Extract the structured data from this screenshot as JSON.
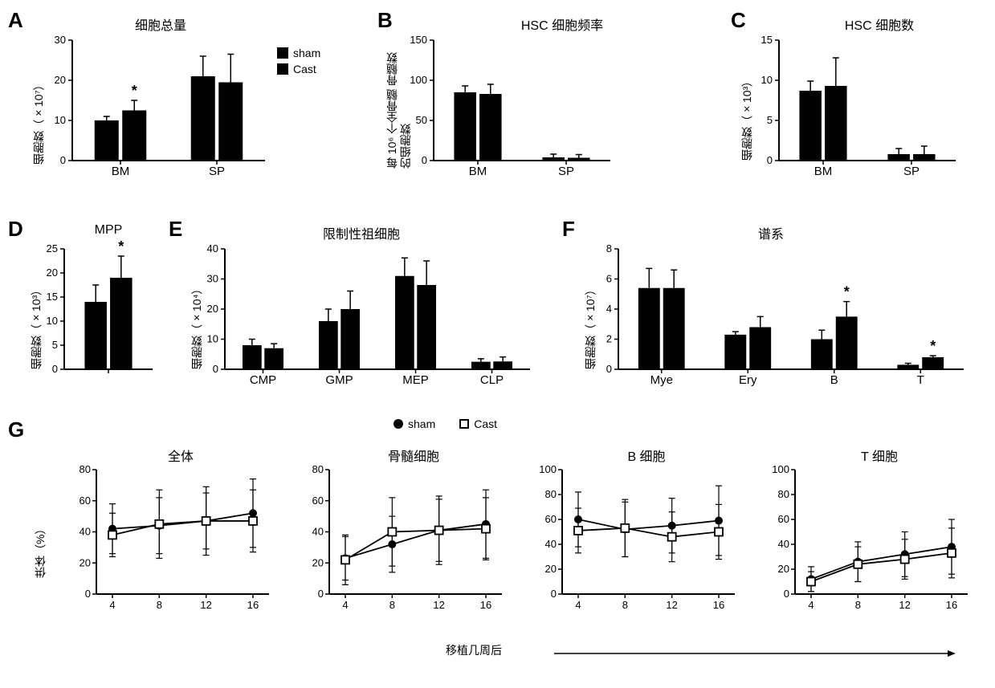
{
  "panels": {
    "A": {
      "label": "A",
      "title": "细胞总量",
      "ylabel": "细胞数（×10⁷）",
      "categories": [
        "BM",
        "SP"
      ],
      "sham": [
        10,
        21
      ],
      "cast": [
        12.5,
        19.5
      ],
      "sham_err": [
        1,
        5
      ],
      "cast_err": [
        2.5,
        7
      ],
      "ylim": [
        0,
        30
      ],
      "yticks": [
        0,
        10,
        20,
        30
      ],
      "sig": {
        "BM": "*"
      },
      "bar_color": "#000000",
      "bg": "#ffffff"
    },
    "B": {
      "label": "B",
      "title": "HSC 细胞频率",
      "ylabel": "每 10⁶ 个全骨髓 骨髓数\n的细胞数",
      "categories": [
        "BM",
        "SP"
      ],
      "sham": [
        85,
        4
      ],
      "cast": [
        83,
        3.5
      ],
      "sham_err": [
        8,
        4
      ],
      "cast_err": [
        12,
        4
      ],
      "ylim": [
        0,
        150
      ],
      "yticks": [
        0,
        50,
        100,
        150
      ],
      "bar_color": "#000000",
      "bg": "#ffffff"
    },
    "C": {
      "label": "C",
      "title": "HSC 细胞数",
      "ylabel": "细胞数（×10³）",
      "categories": [
        "BM",
        "SP"
      ],
      "sham": [
        8.7,
        0.8
      ],
      "cast": [
        9.3,
        0.8
      ],
      "sham_err": [
        1.2,
        0.7
      ],
      "cast_err": [
        3.5,
        1
      ],
      "ylim": [
        0,
        15
      ],
      "yticks": [
        0,
        5,
        10,
        15
      ],
      "bar_color": "#000000",
      "bg": "#ffffff"
    },
    "D": {
      "label": "D",
      "title": "MPP",
      "ylabel": "细胞数（×10³）",
      "sham": [
        14
      ],
      "cast": [
        19
      ],
      "sham_err": [
        3.5
      ],
      "cast_err": [
        4.5
      ],
      "ylim": [
        0,
        25
      ],
      "yticks": [
        0,
        5,
        10,
        15,
        20,
        25
      ],
      "sig": "*",
      "bar_color": "#000000",
      "bg": "#ffffff"
    },
    "E": {
      "label": "E",
      "title": "限制性祖细胞",
      "ylabel": "细胞数（×10⁴）",
      "categories": [
        "CMP",
        "GMP",
        "MEP",
        "CLP"
      ],
      "sham": [
        8,
        16,
        31,
        2.5
      ],
      "cast": [
        7,
        20,
        28,
        2.6
      ],
      "sham_err": [
        2,
        4,
        6,
        1
      ],
      "cast_err": [
        1.5,
        6,
        8,
        1.5
      ],
      "ylim": [
        0,
        40
      ],
      "yticks": [
        0,
        10,
        20,
        30,
        40
      ],
      "bar_color": "#000000",
      "bg": "#ffffff"
    },
    "F": {
      "label": "F",
      "title": "谱系",
      "ylabel": "细胞数（×10⁷）",
      "categories": [
        "Mye",
        "Ery",
        "B",
        "T"
      ],
      "sham": [
        5.4,
        2.3,
        2.0,
        0.3
      ],
      "cast": [
        5.4,
        2.8,
        3.5,
        0.8
      ],
      "sham_err": [
        1.3,
        0.2,
        0.6,
        0.1
      ],
      "cast_err": [
        1.2,
        0.7,
        1,
        0.1
      ],
      "ylim": [
        0,
        8
      ],
      "yticks": [
        0,
        2,
        4,
        6,
        8
      ],
      "sig": {
        "B": "*",
        "T": "*"
      },
      "bar_color": "#000000",
      "bg": "#ffffff"
    },
    "G": {
      "label": "G",
      "ylabel": "供体（%）",
      "xlabel": "移植几周后",
      "subplots": [
        {
          "title": "全体",
          "x": [
            4,
            8,
            12,
            16
          ],
          "sham": [
            42,
            44,
            47,
            52
          ],
          "cast": [
            38,
            45,
            47,
            47
          ],
          "sham_err": [
            16,
            18,
            18,
            22
          ],
          "cast_err": [
            14,
            22,
            22,
            20
          ],
          "ylim": [
            0,
            80
          ],
          "yticks": [
            0,
            20,
            40,
            60,
            80
          ]
        },
        {
          "title": "骨髓细胞",
          "x": [
            4,
            8,
            12,
            16
          ],
          "sham": [
            23,
            32,
            41,
            45
          ],
          "cast": [
            22,
            40,
            41,
            42
          ],
          "sham_err": [
            14,
            18,
            20,
            22
          ],
          "cast_err": [
            16,
            22,
            22,
            20
          ],
          "ylim": [
            0,
            80
          ],
          "yticks": [
            0,
            20,
            40,
            60,
            80
          ]
        },
        {
          "title": "B 细胞",
          "x": [
            4,
            8,
            12,
            16
          ],
          "sham": [
            60,
            52,
            55,
            59
          ],
          "cast": [
            51,
            53,
            46,
            50
          ],
          "sham_err": [
            22,
            22,
            22,
            28
          ],
          "cast_err": [
            18,
            23,
            20,
            22
          ],
          "ylim": [
            0,
            100
          ],
          "yticks": [
            0,
            20,
            40,
            60,
            80,
            100
          ]
        },
        {
          "title": "T 细胞",
          "x": [
            4,
            8,
            12,
            16
          ],
          "sham": [
            12,
            26,
            32,
            38
          ],
          "cast": [
            10,
            24,
            28,
            33
          ],
          "sham_err": [
            10,
            16,
            18,
            22
          ],
          "cast_err": [
            8,
            14,
            16,
            20
          ],
          "ylim": [
            0,
            100
          ],
          "yticks": [
            0,
            20,
            40,
            60,
            80,
            100
          ]
        }
      ]
    }
  },
  "legend_bar": {
    "sham": "sham",
    "cast": "Cast"
  },
  "legend_line": {
    "sham": "sham",
    "cast": "Cast"
  }
}
